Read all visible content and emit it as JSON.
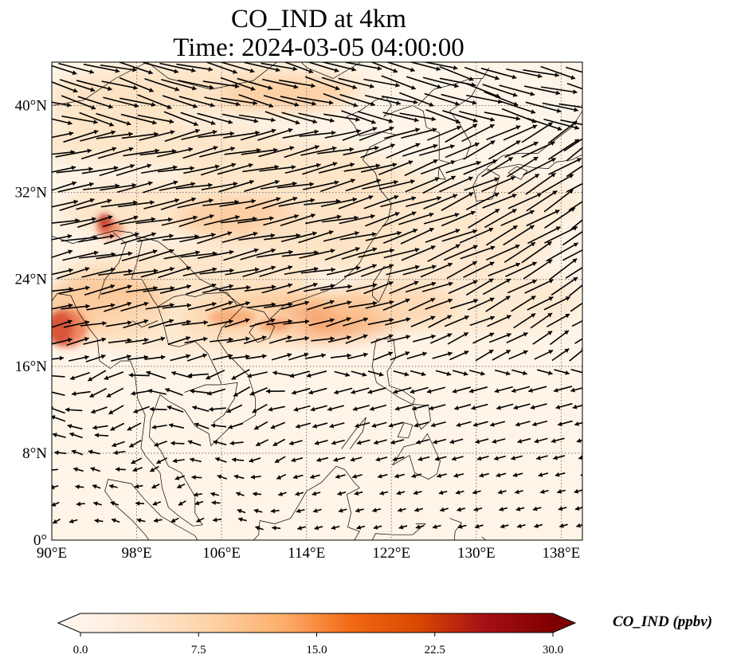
{
  "title": {
    "line1": "CO_IND at 4km",
    "line2": "Time: 2024-03-05 04:00:00"
  },
  "map": {
    "lon_range": [
      90,
      140
    ],
    "lat_range": [
      0,
      44
    ],
    "gridline_style": "dotted",
    "x_ticks": [
      {
        "value": 90,
        "label": "90°E"
      },
      {
        "value": 98,
        "label": "98°E"
      },
      {
        "value": 106,
        "label": "106°E"
      },
      {
        "value": 114,
        "label": "114°E"
      },
      {
        "value": 122,
        "label": "122°E"
      },
      {
        "value": 130,
        "label": "130°E"
      },
      {
        "value": 138,
        "label": "138°E"
      }
    ],
    "y_ticks": [
      {
        "value": 0,
        "label": "0°"
      },
      {
        "value": 8,
        "label": "8°N"
      },
      {
        "value": 16,
        "label": "16°N"
      },
      {
        "value": 24,
        "label": "24°N"
      },
      {
        "value": 32,
        "label": "32°N"
      },
      {
        "value": 40,
        "label": "40°N"
      }
    ],
    "colormap": "OrRd-like",
    "field_colors": [
      "#fef4e7",
      "#fde3c4",
      "#fcc796",
      "#f69e66",
      "#e8673f",
      "#b2241c"
    ]
  },
  "colorbar": {
    "label": "CO_IND (ppbv)",
    "min": 0,
    "max": 30,
    "extend": "both",
    "ticks": [
      "0.0",
      "7.5",
      "15.0",
      "22.5",
      "30.0"
    ],
    "gradient_colors": [
      "#fff5eb",
      "#fee6ce",
      "#fdd0a2",
      "#fdae6b",
      "#f16913",
      "#d94801",
      "#a50f15",
      "#7f0000"
    ]
  }
}
